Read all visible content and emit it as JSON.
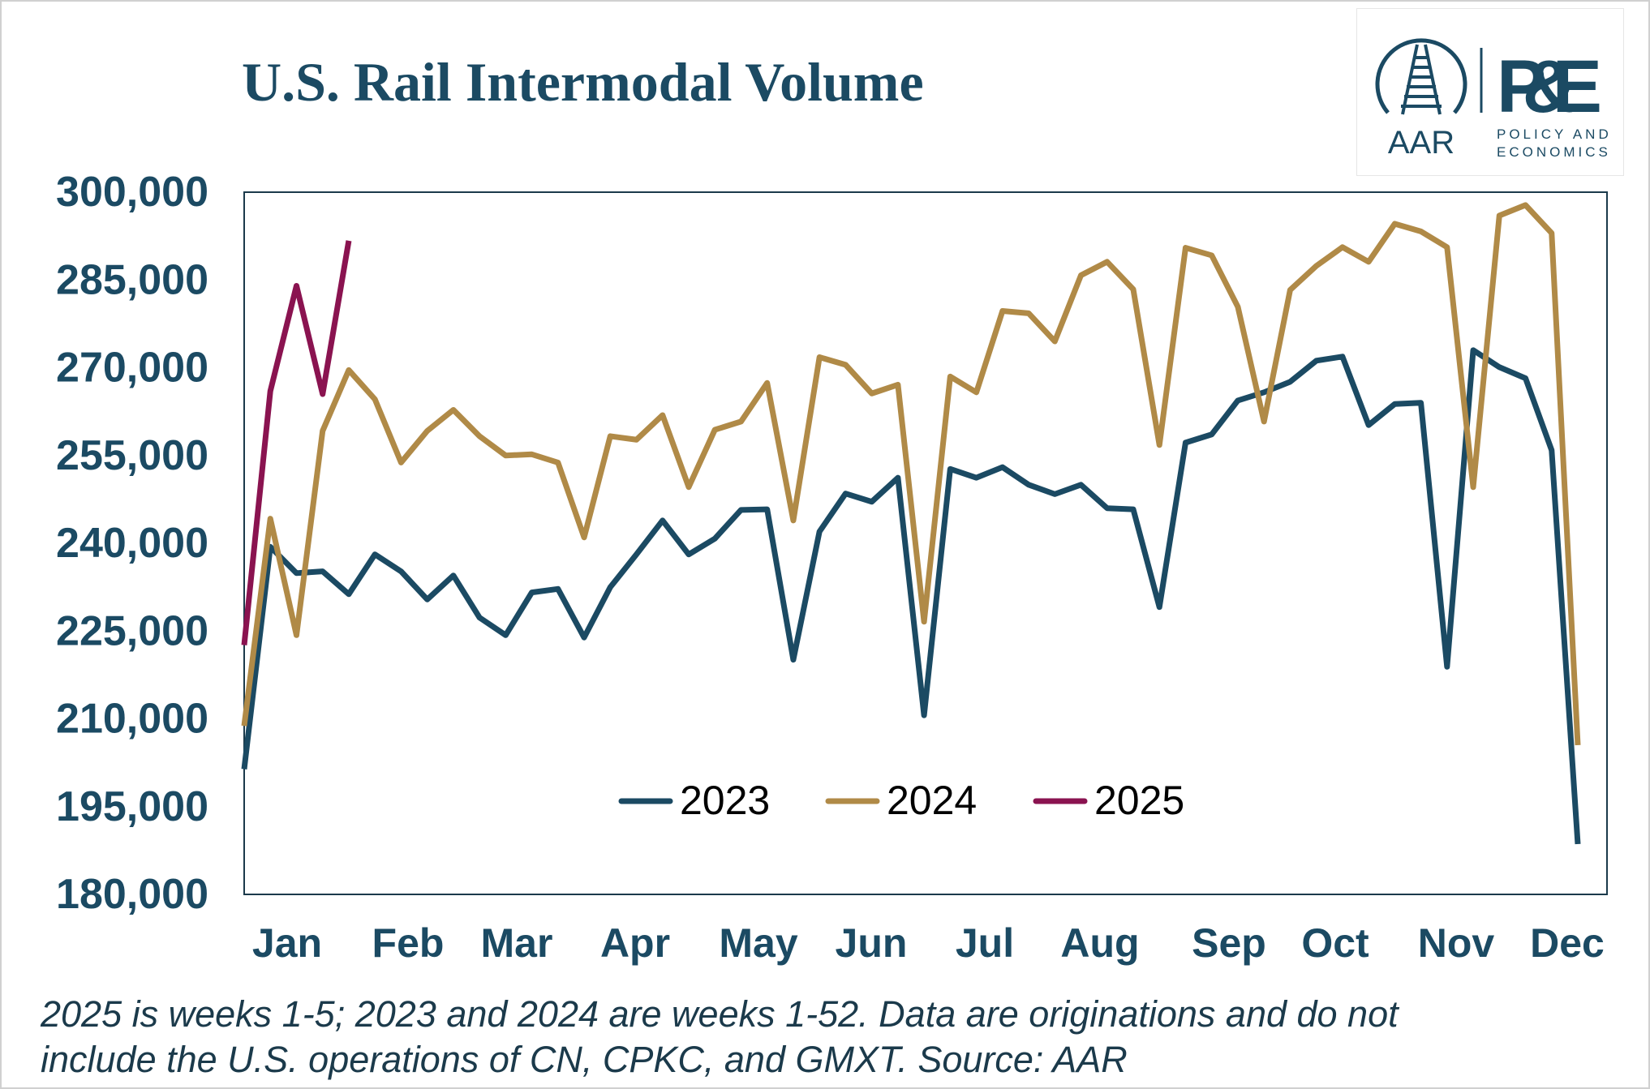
{
  "chart_data": {
    "type": "line",
    "title": "U.S. Rail Intermodal Volume",
    "xlabel": "",
    "ylabel": "",
    "ylim": [
      180000,
      300000
    ],
    "yticks": [
      "180,000",
      "195,000",
      "210,000",
      "225,000",
      "240,000",
      "255,000",
      "270,000",
      "285,000",
      "300,000"
    ],
    "x_tick_labels": [
      "Jan",
      "Feb",
      "Mar",
      "Apr",
      "May",
      "Jun",
      "Jul",
      "Aug",
      "Sep",
      "Oct",
      "Nov",
      "Dec"
    ],
    "x_unit": "week",
    "xlim": [
      1,
      52
    ],
    "grid": false,
    "legend_position": "bottom-center",
    "series": [
      {
        "name": "2023",
        "color": "#1b4a63",
        "values": [
          201400,
          239400,
          234900,
          235200,
          231300,
          238100,
          235200,
          230400,
          234500,
          227300,
          224300,
          231600,
          232200,
          223900,
          232500,
          238100,
          243900,
          238100,
          240800,
          245700,
          245800,
          220100,
          242000,
          248500,
          247100,
          251200,
          210600,
          252700,
          251200,
          253000,
          250000,
          248400,
          250000,
          246000,
          245800,
          229100,
          257200,
          258600,
          264400,
          265800,
          267600,
          271200,
          271900,
          260200,
          263800,
          264000,
          218900,
          273000,
          270100,
          268200,
          255900,
          188600
        ]
      },
      {
        "name": "2024",
        "color": "#b08a47",
        "values": [
          208800,
          244200,
          224300,
          259200,
          269600,
          264600,
          253800,
          259200,
          262800,
          258300,
          255000,
          255200,
          253800,
          241000,
          258300,
          257700,
          261900,
          249600,
          259400,
          260800,
          267400,
          243900,
          271800,
          270500,
          265600,
          267100,
          226600,
          268500,
          265800,
          279700,
          279300,
          274500,
          285800,
          288100,
          283400,
          256800,
          290500,
          289200,
          280400,
          260800,
          283300,
          287400,
          290600,
          288100,
          294600,
          293300,
          290600,
          249600,
          296000,
          297800,
          293000,
          205500
        ]
      },
      {
        "name": "2025",
        "color": "#8a1350",
        "values": [
          222600,
          266000,
          284000,
          265500,
          291700
        ]
      }
    ],
    "footnote": [
      "2025 is weeks 1-5; 2023 and 2024 are weeks 1-52.  Data are originations and do not",
      "include the U.S. operations of CN, CPKC, and GMXT. Source: AAR"
    ]
  },
  "logo": {
    "aar": "AAR",
    "pe": "P&E",
    "sub1": "POLICY AND",
    "sub2": "ECONOMICS"
  }
}
